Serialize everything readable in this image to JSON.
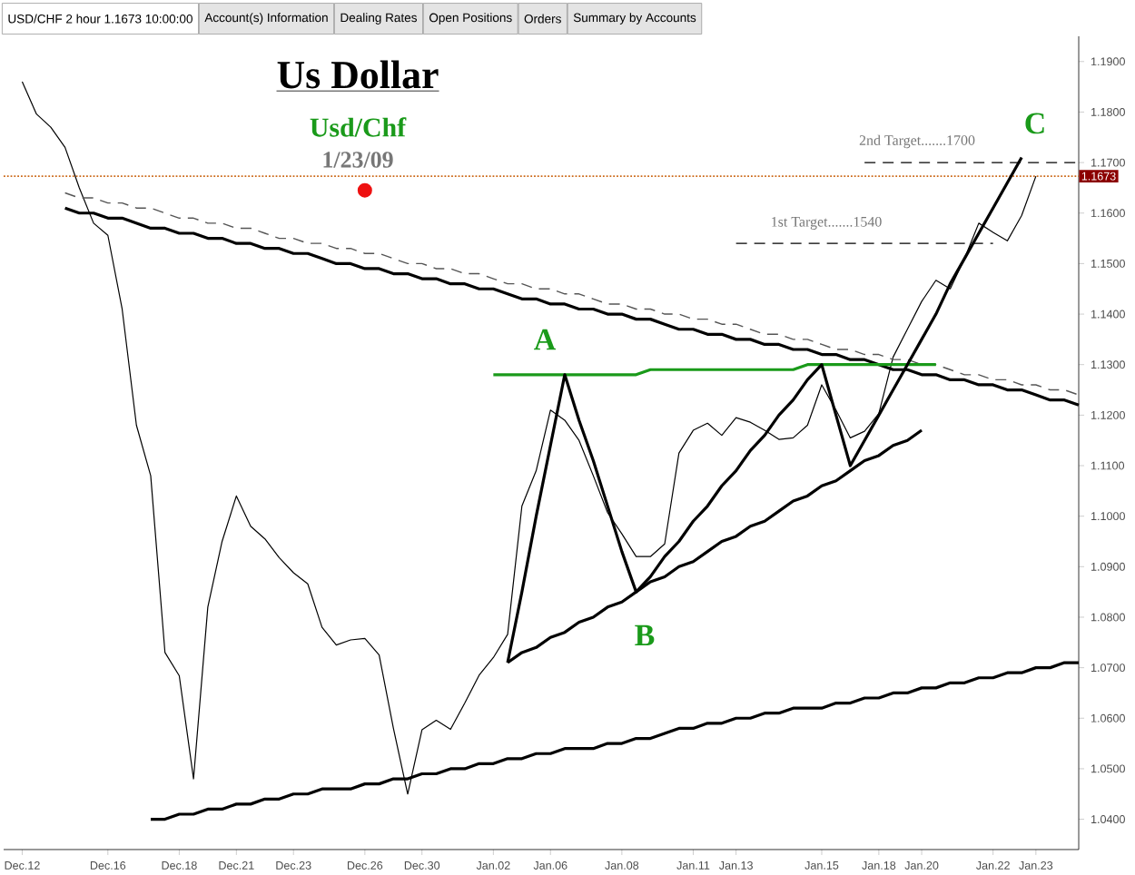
{
  "chart_data": {
    "type": "line",
    "title": "Us Dollar",
    "subtitle": "Usd/Chf",
    "ylim": [
      1.034,
      1.195
    ],
    "categories": [
      "Dec.12",
      null,
      null,
      null,
      null,
      null,
      "Dec.16",
      null,
      null,
      null,
      null,
      "Dec.18",
      null,
      null,
      null,
      "Dec.21",
      null,
      null,
      null,
      "Dec.23",
      null,
      null,
      null,
      null,
      "Dec.26",
      null,
      null,
      null,
      "Dec.30",
      null,
      null,
      null,
      null,
      "Jan.02",
      null,
      null,
      null,
      "Jan.06",
      null,
      null,
      null,
      null,
      "Jan.08",
      null,
      null,
      null,
      null,
      "Jan.11",
      null,
      null,
      "Jan.13",
      null,
      null,
      null,
      null,
      null,
      "Jan.15",
      null,
      null,
      null,
      "Jan.18",
      null,
      null,
      "Jan.20",
      null,
      null,
      null,
      null,
      "Jan.22",
      null,
      null,
      "Jan.23",
      null,
      null,
      null
    ],
    "yticks": [
      {
        "value": 1.04,
        "label": "1.0400"
      },
      {
        "value": 1.05,
        "label": "1.0500"
      },
      {
        "value": 1.06,
        "label": "1.0600"
      },
      {
        "value": 1.07,
        "label": "1.0700"
      },
      {
        "value": 1.08,
        "label": "1.0800"
      },
      {
        "value": 1.09,
        "label": "1.0900"
      },
      {
        "value": 1.1,
        "label": "1.1000"
      },
      {
        "value": 1.11,
        "label": "1.1100"
      },
      {
        "value": 1.12,
        "label": "1.1200"
      },
      {
        "value": 1.13,
        "label": "1.1300"
      },
      {
        "value": 1.14,
        "label": "1.1400"
      },
      {
        "value": 1.15,
        "label": "1.1500"
      },
      {
        "value": 1.16,
        "label": "1.1600"
      },
      {
        "value": 1.17,
        "label": "1.1700"
      },
      {
        "value": 1.18,
        "label": "1.1800"
      },
      {
        "value": 1.19,
        "label": "1.1900"
      }
    ],
    "series": [
      {
        "color": "#000000",
        "values": [
          1.186,
          1.1796,
          1.177,
          1.173,
          1.165,
          1.158,
          1.1556,
          1.141,
          1.118,
          1.108,
          1.073,
          1.0684,
          1.048,
          1.082,
          1.095,
          1.104,
          1.098,
          1.0955,
          1.0918,
          1.0888,
          1.0866,
          1.078,
          1.0745,
          1.0755,
          1.0758,
          1.0725,
          1.058,
          1.045,
          1.0577,
          1.0596,
          1.0578,
          1.063,
          1.0685,
          1.072,
          1.0766,
          1.102,
          1.109,
          1.121,
          1.119,
          1.115,
          1.108,
          1.1007,
          1.0965,
          1.092,
          1.092,
          1.0945,
          1.1125,
          1.117,
          1.1184,
          1.116,
          1.1195,
          1.1186,
          1.117,
          1.1152,
          1.1155,
          1.118,
          1.126,
          1.121,
          1.1155,
          1.1168,
          1.1203,
          1.1315,
          1.137,
          1.1425,
          1.1467,
          1.145,
          1.151,
          1.158,
          1.1562,
          1.1545,
          1.1595,
          1.1673,
          null,
          null,
          null
        ]
      },
      {
        "color": "#000000",
        "values": [
          null,
          null,
          null,
          1.161,
          1.16,
          1.16,
          1.159,
          1.159,
          1.158,
          1.157,
          1.157,
          1.156,
          1.156,
          1.155,
          1.155,
          1.154,
          1.154,
          1.153,
          1.153,
          1.152,
          1.152,
          1.151,
          1.15,
          1.15,
          1.149,
          1.149,
          1.148,
          1.148,
          1.147,
          1.147,
          1.146,
          1.146,
          1.145,
          1.145,
          1.144,
          1.143,
          1.143,
          1.142,
          1.142,
          1.141,
          1.141,
          1.14,
          1.14,
          1.139,
          1.139,
          1.138,
          1.137,
          1.137,
          1.136,
          1.136,
          1.135,
          1.135,
          1.134,
          1.134,
          1.133,
          1.133,
          1.132,
          1.132,
          1.131,
          1.131,
          1.13,
          1.129,
          1.129,
          1.128,
          1.128,
          1.127,
          1.127,
          1.126,
          1.126,
          1.125,
          1.125,
          1.124,
          1.123,
          1.123,
          1.122
        ]
      },
      {
        "color": "#555555",
        "line_style": "dashed",
        "values": [
          null,
          null,
          null,
          1.164,
          1.163,
          1.163,
          1.162,
          1.162,
          1.161,
          1.161,
          1.16,
          1.159,
          1.159,
          1.158,
          1.158,
          1.157,
          1.157,
          1.156,
          1.155,
          1.155,
          1.154,
          1.154,
          1.153,
          1.153,
          1.152,
          1.152,
          1.151,
          1.15,
          1.15,
          1.149,
          1.149,
          1.148,
          1.148,
          1.147,
          1.146,
          1.146,
          1.145,
          1.145,
          1.144,
          1.144,
          1.143,
          1.142,
          1.142,
          1.141,
          1.141,
          1.14,
          1.14,
          1.139,
          1.139,
          1.138,
          1.138,
          1.137,
          1.136,
          1.136,
          1.135,
          1.135,
          1.134,
          1.133,
          1.133,
          1.132,
          1.132,
          1.131,
          1.131,
          1.13,
          1.13,
          1.129,
          1.128,
          1.128,
          1.127,
          1.127,
          1.126,
          1.126,
          1.125,
          1.125,
          1.124
        ]
      },
      {
        "color": "#000000",
        "values": [
          null,
          null,
          null,
          null,
          null,
          null,
          null,
          null,
          null,
          1.04,
          1.04,
          1.041,
          1.041,
          1.042,
          1.042,
          1.043,
          1.043,
          1.044,
          1.044,
          1.045,
          1.045,
          1.046,
          1.046,
          1.046,
          1.047,
          1.047,
          1.048,
          1.048,
          1.049,
          1.049,
          1.05,
          1.05,
          1.051,
          1.051,
          1.052,
          1.052,
          1.053,
          1.053,
          1.054,
          1.054,
          1.054,
          1.055,
          1.055,
          1.056,
          1.056,
          1.057,
          1.058,
          1.058,
          1.059,
          1.059,
          1.06,
          1.06,
          1.061,
          1.061,
          1.062,
          1.062,
          1.062,
          1.063,
          1.063,
          1.064,
          1.064,
          1.065,
          1.065,
          1.066,
          1.066,
          1.067,
          1.067,
          1.068,
          1.068,
          1.069,
          1.069,
          1.07,
          1.07,
          1.071,
          1.071
        ]
      },
      {
        "color": "#1a9a1a",
        "values": [
          null,
          null,
          null,
          null,
          null,
          null,
          null,
          null,
          null,
          null,
          null,
          null,
          null,
          null,
          null,
          null,
          null,
          null,
          null,
          null,
          null,
          null,
          null,
          null,
          null,
          null,
          null,
          null,
          null,
          null,
          null,
          null,
          null,
          1.128,
          1.128,
          1.128,
          1.128,
          1.128,
          1.128,
          1.128,
          1.128,
          1.128,
          1.128,
          1.128,
          1.129,
          1.129,
          1.129,
          1.129,
          1.129,
          1.129,
          1.129,
          1.129,
          1.129,
          1.129,
          1.129,
          1.13,
          1.13,
          1.13,
          1.13,
          1.13,
          1.13,
          1.13,
          1.13,
          1.13,
          1.13,
          null,
          null,
          null,
          null,
          null,
          null,
          null,
          null,
          null,
          null
        ]
      },
      {
        "color": "#000000",
        "values": [
          null,
          null,
          null,
          null,
          null,
          null,
          null,
          null,
          null,
          null,
          null,
          null,
          null,
          null,
          null,
          null,
          null,
          null,
          null,
          null,
          null,
          null,
          null,
          null,
          null,
          null,
          null,
          null,
          null,
          null,
          null,
          null,
          null,
          null,
          1.071,
          1.085,
          1.1,
          1.114,
          1.128,
          1.119,
          1.111,
          1.102,
          1.093,
          1.085,
          1.088,
          1.092,
          1.095,
          1.099,
          1.102,
          1.106,
          1.109,
          1.113,
          1.116,
          1.12,
          1.123,
          1.127,
          1.13,
          1.12,
          1.11,
          1.115,
          1.12,
          1.125,
          1.13,
          1.135,
          1.14,
          1.146,
          1.151,
          1.156,
          1.161,
          1.166,
          1.171,
          null,
          null,
          null,
          null
        ]
      },
      {
        "color": "#000000",
        "values": [
          null,
          null,
          null,
          null,
          null,
          null,
          null,
          null,
          null,
          null,
          null,
          null,
          null,
          null,
          null,
          null,
          null,
          null,
          null,
          null,
          null,
          null,
          null,
          null,
          null,
          null,
          null,
          null,
          null,
          null,
          null,
          null,
          null,
          null,
          1.071,
          1.073,
          1.074,
          1.076,
          1.077,
          1.079,
          1.08,
          1.082,
          1.083,
          1.085,
          1.087,
          1.088,
          1.09,
          1.091,
          1.093,
          1.095,
          1.096,
          1.098,
          1.099,
          1.101,
          1.103,
          1.104,
          1.106,
          1.107,
          1.109,
          1.111,
          1.112,
          1.114,
          1.115,
          1.117,
          null,
          null,
          null,
          null,
          null,
          null,
          null,
          null,
          null,
          null,
          null
        ]
      },
      {
        "color": "#000000",
        "line_style": "dashed",
        "values": [
          null,
          null,
          null,
          null,
          null,
          null,
          null,
          null,
          null,
          null,
          null,
          null,
          null,
          null,
          null,
          null,
          null,
          null,
          null,
          null,
          null,
          null,
          null,
          null,
          null,
          null,
          null,
          null,
          null,
          null,
          null,
          null,
          null,
          null,
          null,
          null,
          null,
          null,
          null,
          null,
          null,
          null,
          null,
          null,
          null,
          null,
          null,
          null,
          null,
          null,
          null,
          null,
          null,
          null,
          null,
          null,
          null,
          null,
          null,
          1.17,
          1.17,
          1.17,
          1.17,
          1.17,
          1.17,
          1.17,
          1.17,
          1.17,
          1.17,
          1.17,
          1.17,
          1.17,
          1.17,
          1.17,
          1.17
        ]
      },
      {
        "color": "#000000",
        "line_style": "dashed",
        "values": [
          null,
          null,
          null,
          null,
          null,
          null,
          null,
          null,
          null,
          null,
          null,
          null,
          null,
          null,
          null,
          null,
          null,
          null,
          null,
          null,
          null,
          null,
          null,
          null,
          null,
          null,
          null,
          null,
          null,
          null,
          null,
          null,
          null,
          null,
          null,
          null,
          null,
          null,
          null,
          null,
          null,
          null,
          null,
          null,
          null,
          null,
          null,
          null,
          null,
          null,
          1.154,
          1.154,
          1.154,
          1.154,
          1.154,
          1.154,
          1.154,
          1.154,
          1.154,
          1.154,
          1.154,
          1.154,
          1.154,
          1.154,
          1.154,
          1.154,
          1.154,
          1.154,
          1.154,
          null,
          null,
          null,
          null,
          null,
          null
        ]
      },
      {
        "type": "scatter",
        "marker": "circle",
        "color": "#ee1111",
        "values": [
          null,
          null,
          null,
          null,
          null,
          null,
          null,
          null,
          null,
          null,
          null,
          null,
          null,
          null,
          null,
          null,
          null,
          null,
          null,
          null,
          null,
          null,
          null,
          null,
          1.1645,
          null,
          null,
          null,
          null,
          null,
          null,
          null,
          null,
          null,
          null,
          null,
          null,
          null,
          null,
          null,
          null,
          null,
          null,
          null,
          null,
          null,
          null,
          null,
          null,
          null,
          null,
          null,
          null,
          null,
          null,
          null,
          null,
          null,
          null,
          null,
          null,
          null,
          null,
          null,
          null,
          null,
          null,
          null,
          null,
          null,
          null,
          null,
          null,
          null,
          null
        ]
      }
    ],
    "ref_lines": [
      {
        "axis": "y",
        "value": 1.1673,
        "label": "1.1673",
        "color": "#cc6a1a",
        "line_style": "dotted"
      }
    ],
    "annotations": [
      "USD/CHF 2 hour 1.1673 10:00:00",
      "Account(s) Information",
      "Dealing Rates",
      "Open Positions",
      "Orders",
      "Summary by Accounts",
      "1/23/09",
      "A",
      "B",
      "C",
      "2nd Target.......1700",
      "1st Target.......1540"
    ]
  }
}
